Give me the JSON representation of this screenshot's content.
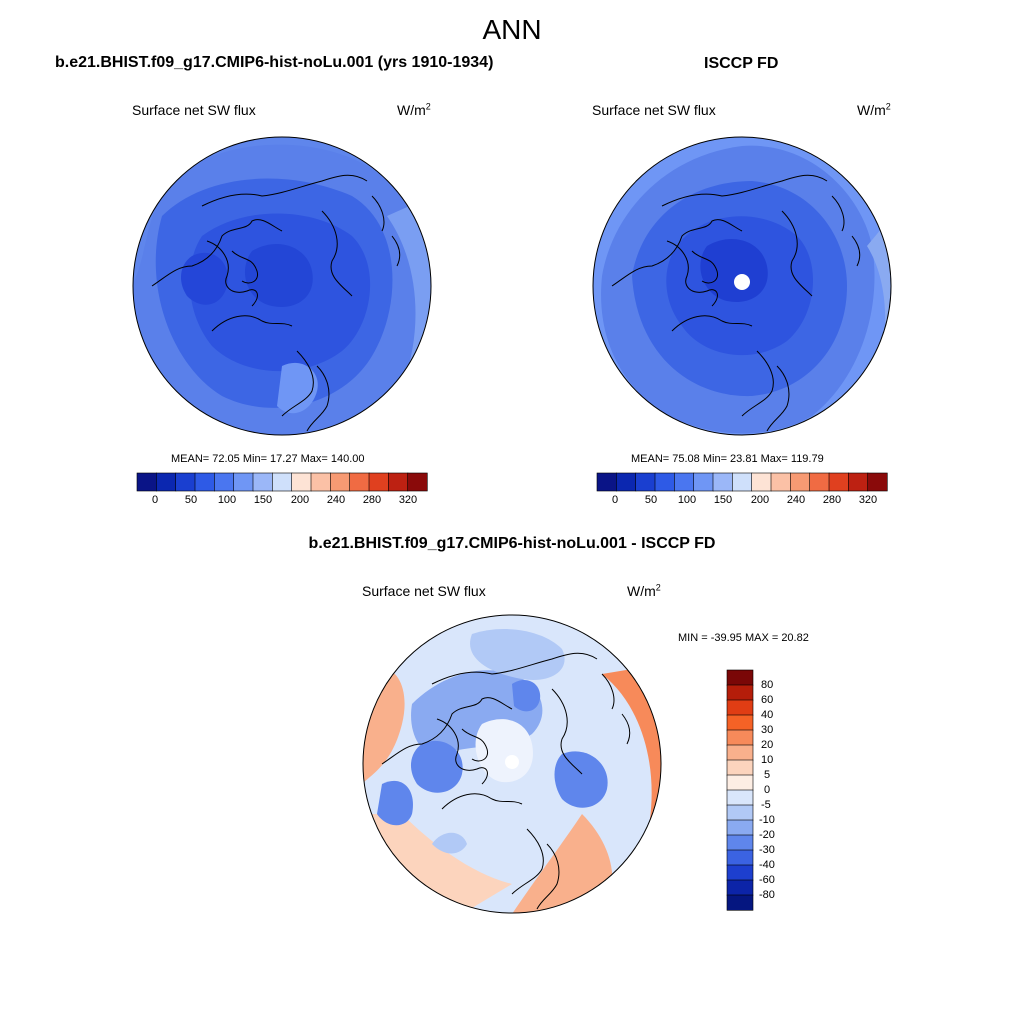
{
  "figure": {
    "title": "ANN",
    "left_run_title": "b.e21.BHIST.f09_g17.CMIP6-hist-noLu.001 (yrs 1910-1934)",
    "right_run_title": "ISCCP FD",
    "diff_title": "b.e21.BHIST.f09_g17.CMIP6-hist-noLu.001 - ISCCP FD"
  },
  "panels": {
    "model": {
      "variable": "Surface net SW flux",
      "units_base": "W/m",
      "units_exp": "2",
      "stats": "MEAN=  72.05  Min=  17.27  Max= 140.00",
      "mean": 72.05,
      "min": 17.27,
      "max": 140.0
    },
    "obs": {
      "variable": "Surface net SW flux",
      "units_base": "W/m",
      "units_exp": "2",
      "stats": "MEAN=  75.08  Min=  23.81  Max= 119.79",
      "mean": 75.08,
      "min": 23.81,
      "max": 119.79
    },
    "diff": {
      "variable": "Surface net SW flux",
      "units_base": "W/m",
      "units_exp": "2",
      "stats": "MIN = -39.95 MAX =  20.82",
      "min": -39.95,
      "max": 20.82
    }
  },
  "colorbars": {
    "abs": {
      "labels": [
        "0",
        "50",
        "100",
        "150",
        "200",
        "240",
        "280",
        "320"
      ],
      "colors": [
        "#0a1487",
        "#0b27b0",
        "#1a3fd0",
        "#2e5ae6",
        "#4a76f0",
        "#6f96f5",
        "#9bb7f8",
        "#cfe0fb",
        "#fde3d5",
        "#fbc1a6",
        "#f79a73",
        "#f06b43",
        "#e0401f",
        "#bd2112",
        "#8a0a0a"
      ]
    },
    "diff": {
      "labels": [
        "80",
        "60",
        "40",
        "30",
        "20",
        "10",
        "5",
        "0",
        "-5",
        "-10",
        "-20",
        "-30",
        "-40",
        "-60",
        "-80"
      ],
      "colors": [
        "#7a0707",
        "#b51d0a",
        "#e03d14",
        "#f56226",
        "#f78a5a",
        "#f9b08c",
        "#fcd4bd",
        "#fdeee4",
        "#d9e6fb",
        "#b1c9f6",
        "#8aaaf1",
        "#5f86ec",
        "#3b63e2",
        "#1d3fce",
        "#0c24a8",
        "#051680"
      ]
    }
  },
  "chart_data": [
    {
      "type": "heatmap",
      "title": "b.e21.BHIST.f09_g17.CMIP6-hist-noLu.001 (yrs 1910-1934)",
      "variable": "Surface net SW flux",
      "units": "W/m2",
      "projection": "north polar stereographic",
      "mean": 72.05,
      "min": 17.27,
      "max": 140.0,
      "levels": [
        0,
        25,
        50,
        75,
        100,
        125,
        150,
        175,
        200,
        220,
        240,
        260,
        280,
        300,
        320
      ]
    },
    {
      "type": "heatmap",
      "title": "ISCCP FD",
      "variable": "Surface net SW flux",
      "units": "W/m2",
      "projection": "north polar stereographic",
      "mean": 75.08,
      "min": 23.81,
      "max": 119.79,
      "levels": [
        0,
        25,
        50,
        75,
        100,
        125,
        150,
        175,
        200,
        220,
        240,
        260,
        280,
        300,
        320
      ]
    },
    {
      "type": "heatmap",
      "title": "b.e21.BHIST.f09_g17.CMIP6-hist-noLu.001 - ISCCP FD",
      "variable": "Surface net SW flux",
      "units": "W/m2",
      "projection": "north polar stereographic",
      "min": -39.95,
      "max": 20.82,
      "levels": [
        -80,
        -60,
        -40,
        -30,
        -20,
        -10,
        -5,
        0,
        5,
        10,
        20,
        30,
        40,
        60,
        80
      ]
    }
  ]
}
